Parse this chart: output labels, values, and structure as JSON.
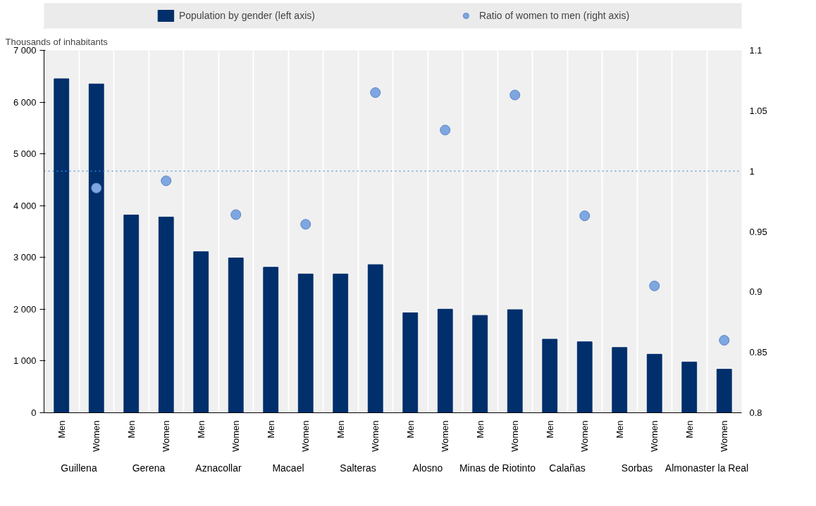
{
  "chart_data": {
    "type": "bar",
    "ylabel": "Thousands of inhabitants",
    "categories": [
      "Men",
      "Women",
      "Men",
      "Women",
      "Men",
      "Women",
      "Men",
      "Women",
      "Men",
      "Women",
      "Men",
      "Women",
      "Men",
      "Women",
      "Men",
      "Women",
      "Men",
      "Women",
      "Men",
      "Women"
    ],
    "annotations": [
      "Guillena",
      "Gerena",
      "Aznacollar",
      "Macael",
      "Salteras",
      "Alosno",
      "Minas de Riotinto",
      "Calañas",
      "Sorbas",
      "Almonaster la Real"
    ],
    "series": [
      {
        "name": "Population by gender (left axis)",
        "color": "#002f6c",
        "values": [
          6450,
          6350,
          3820,
          3780,
          3110,
          2990,
          2810,
          2680,
          2680,
          2860,
          1930,
          2000,
          1880,
          1990,
          1420,
          1370,
          1260,
          1130,
          980,
          840
        ]
      },
      {
        "name": "Ratio of women to men (right axis)",
        "type": "scatter",
        "axis": "y2",
        "color": "#7ea6e0",
        "values": [
          null,
          0.986,
          null,
          0.992,
          null,
          0.964,
          null,
          0.956,
          null,
          1.065,
          null,
          1.034,
          null,
          1.063,
          null,
          0.963,
          null,
          0.905,
          null,
          0.86
        ]
      }
    ],
    "ylim": [
      0,
      7000
    ],
    "yticks": [
      0,
      {
        "value": 1000,
        "label": "1 000"
      },
      {
        "value": 2000,
        "label": "2 000"
      },
      {
        "value": 3000,
        "label": "3 000"
      },
      {
        "value": 4000,
        "label": "4 000"
      },
      {
        "value": 5000,
        "label": "5 000"
      },
      {
        "value": 6000,
        "label": "6 000"
      },
      {
        "value": 7000,
        "label": "7 000"
      }
    ],
    "y2lim": [
      0.8,
      1.1
    ],
    "y2ticks": [
      0.8,
      0.85,
      0.9,
      0.95,
      1,
      1.05,
      1.1
    ],
    "ref_lines": [
      {
        "axis": "y2",
        "value": 1,
        "color": "#4a90d9",
        "line_style": "dotted"
      }
    ],
    "marker": "circle",
    "legend": "top",
    "grid": "x"
  }
}
